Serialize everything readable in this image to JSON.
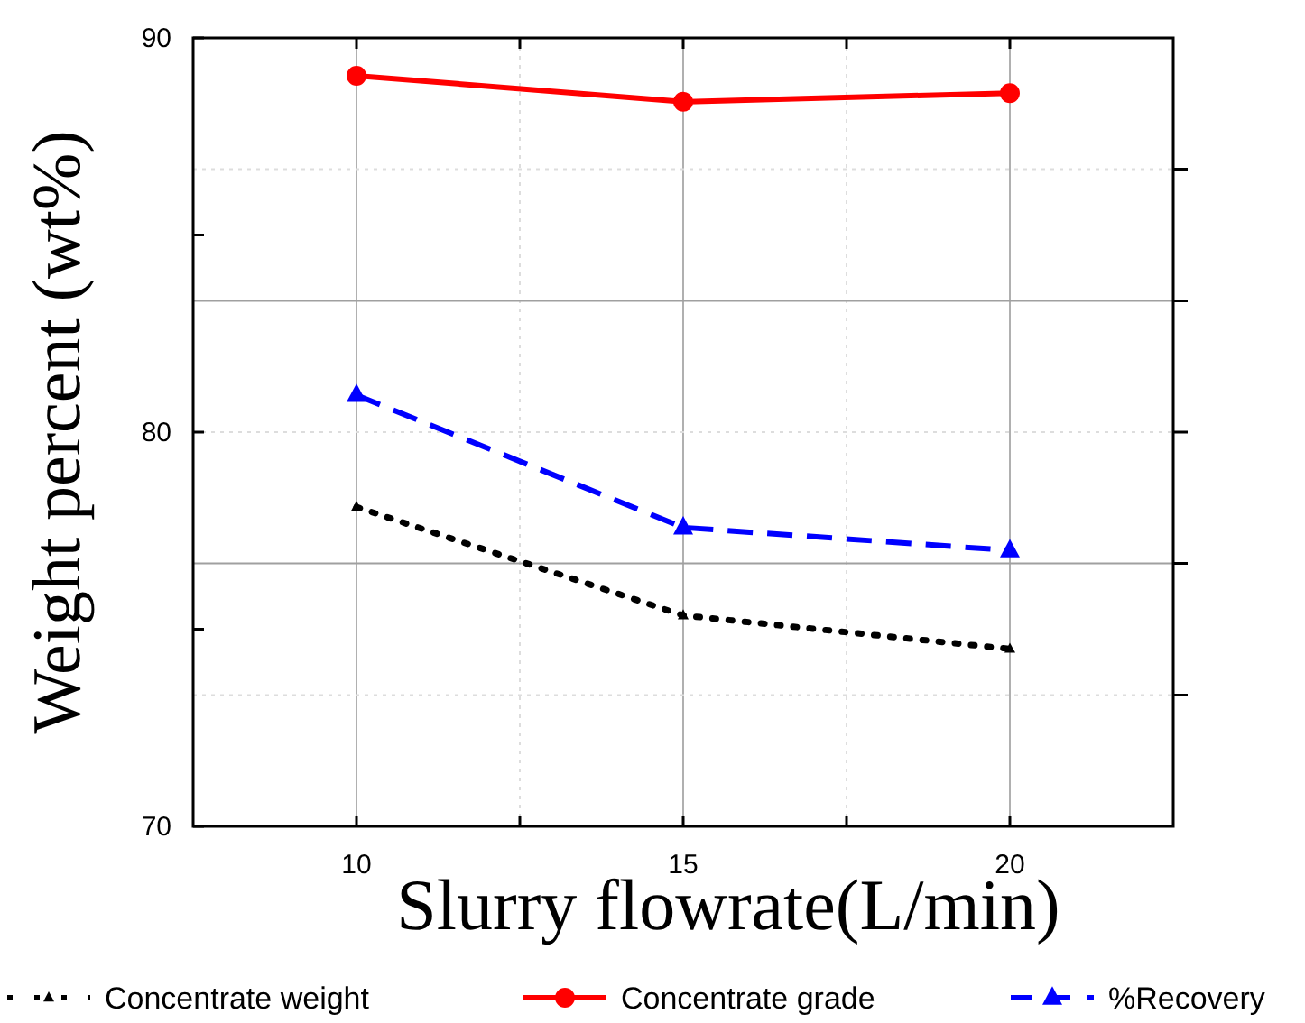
{
  "chart_data": {
    "type": "line",
    "xlabel": "Slurry flowrate(L/min)",
    "ylabel": "Weight percent (wt%)",
    "x": [
      10,
      15,
      20
    ],
    "series": [
      {
        "name": "Concentrate weight",
        "color": "#000000",
        "values": [
          78.1,
          75.35,
          74.5
        ],
        "marker": "triangle",
        "line_style": "dotted"
      },
      {
        "name": "Concentrate grade",
        "color": "#ff0000",
        "values": [
          89.04,
          88.38,
          88.6
        ],
        "marker": "circle",
        "line_style": "solid"
      },
      {
        "name": "%Recovery",
        "color": "#0000ff",
        "values": [
          80.94,
          77.58,
          77.0
        ],
        "marker": "triangle",
        "line_style": "dashed"
      }
    ],
    "xlim": [
      7.5,
      22.5
    ],
    "xticks": [
      10,
      {
        "value": 12.5,
        "label": null
      },
      15,
      {
        "value": 17.5,
        "label": null
      },
      20
    ],
    "ylim": [
      70,
      90
    ],
    "yticks": [
      70,
      {
        "value": 75,
        "label": null
      },
      80,
      {
        "value": 85,
        "label": null
      },
      90
    ],
    "ref_lines": [
      {
        "axis": "y",
        "value": 73.33,
        "color": "#dddddd",
        "line_style": "dotted"
      },
      {
        "axis": "y",
        "value": 76.67,
        "color": "#a0a0a0",
        "line_style": "solid"
      },
      {
        "axis": "y",
        "value": 80,
        "color": "#dddddd",
        "line_style": "dotted"
      },
      {
        "axis": "y",
        "value": 83.33,
        "color": "#a0a0a0",
        "line_style": "solid"
      },
      {
        "axis": "y",
        "value": 86.67,
        "color": "#dddddd",
        "line_style": "dotted"
      }
    ],
    "grid": true,
    "legend": "bottom"
  }
}
